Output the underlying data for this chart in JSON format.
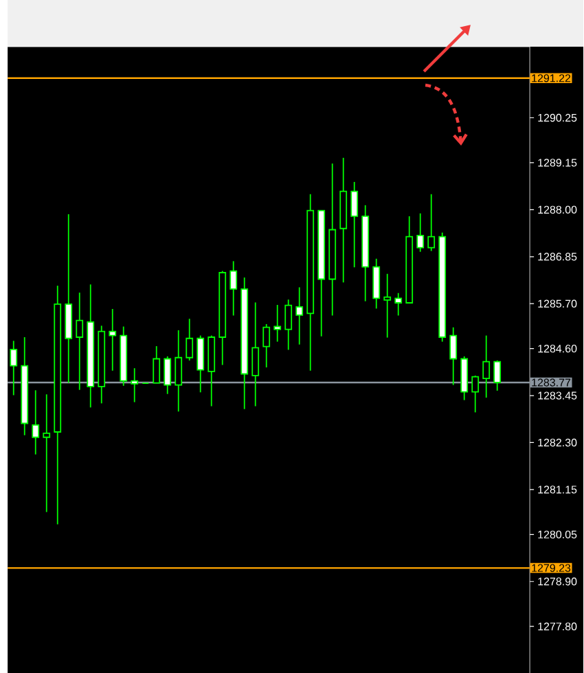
{
  "chart_data": {
    "type": "candlestick",
    "color": "#00ff00",
    "categories": [
      null,
      null,
      null,
      null,
      null,
      null,
      null,
      null,
      null,
      null,
      null,
      null,
      null,
      null,
      null,
      null,
      null,
      null,
      null,
      null,
      null,
      null,
      null,
      null,
      null,
      null,
      null,
      null,
      null,
      null,
      null,
      null,
      null,
      null,
      null,
      null,
      null,
      null,
      null,
      null,
      null,
      null,
      null,
      null,
      null
    ],
    "ohlc": [
      [
        1284.58,
        1284.79,
        1283.46,
        1284.18
      ],
      [
        1284.18,
        1284.88,
        1282.48,
        1282.77
      ],
      [
        1282.73,
        1283.58,
        1282.01,
        1282.43
      ],
      [
        1282.43,
        1283.48,
        1280.6,
        1282.53
      ],
      [
        1282.56,
        1286.14,
        1280.3,
        1285.69
      ],
      [
        1285.69,
        1287.89,
        1283.76,
        1284.85
      ],
      [
        1284.88,
        1285.97,
        1283.59,
        1285.29
      ],
      [
        1285.25,
        1286.17,
        1283.16,
        1283.67
      ],
      [
        1283.67,
        1285.16,
        1283.26,
        1285.02
      ],
      [
        1285.02,
        1285.57,
        1284.06,
        1284.92
      ],
      [
        1284.92,
        1285.14,
        1283.69,
        1283.81
      ],
      [
        1283.81,
        1284.12,
        1283.29,
        1283.74
      ],
      [
        1283.75,
        1283.75,
        1283.75,
        1283.75
      ],
      [
        1283.76,
        1284.66,
        1283.76,
        1284.35
      ],
      [
        1284.35,
        1284.41,
        1283.49,
        1283.71
      ],
      [
        1283.71,
        1285.05,
        1283.06,
        1284.38
      ],
      [
        1284.38,
        1285.33,
        1284.31,
        1284.85
      ],
      [
        1284.85,
        1284.92,
        1283.53,
        1284.08
      ],
      [
        1284.04,
        1284.92,
        1283.19,
        1284.88
      ],
      [
        1284.88,
        1286.5,
        1284.2,
        1286.46
      ],
      [
        1286.5,
        1286.74,
        1285.41,
        1286.06
      ],
      [
        1286.06,
        1286.34,
        1283.12,
        1283.98
      ],
      [
        1283.94,
        1285.73,
        1283.19,
        1284.62
      ],
      [
        1284.65,
        1285.2,
        1284.14,
        1285.12
      ],
      [
        1285.14,
        1285.67,
        1284.77,
        1285.07
      ],
      [
        1285.07,
        1285.8,
        1284.57,
        1285.66
      ],
      [
        1285.62,
        1286.1,
        1284.7,
        1285.42
      ],
      [
        1285.46,
        1288.38,
        1284.06,
        1287.98
      ],
      [
        1287.98,
        1287.98,
        1284.9,
        1286.3
      ],
      [
        1286.3,
        1289.13,
        1285.41,
        1287.51
      ],
      [
        1287.54,
        1289.27,
        1286.22,
        1288.45
      ],
      [
        1288.45,
        1288.68,
        1286.59,
        1287.84
      ],
      [
        1287.84,
        1288.11,
        1285.76,
        1286.6
      ],
      [
        1286.6,
        1286.8,
        1285.58,
        1285.83
      ],
      [
        1285.79,
        1286.43,
        1284.87,
        1285.86
      ],
      [
        1285.83,
        1285.96,
        1285.41,
        1285.72
      ],
      [
        1285.72,
        1287.84,
        1285.72,
        1287.34
      ],
      [
        1287.37,
        1287.91,
        1286.97,
        1287.07
      ],
      [
        1287.07,
        1288.38,
        1286.99,
        1287.34
      ],
      [
        1287.34,
        1287.44,
        1284.77,
        1284.88
      ],
      [
        1284.92,
        1285.12,
        1283.71,
        1284.35
      ],
      [
        1284.35,
        1284.41,
        1283.34,
        1283.54
      ],
      [
        1283.54,
        1283.94,
        1283.04,
        1283.91
      ],
      [
        1283.87,
        1284.92,
        1283.4,
        1284.28
      ],
      [
        1284.28,
        1284.31,
        1283.57,
        1283.77
      ]
    ],
    "ylim": [
      1276.66,
      1291.99
    ],
    "yticks": [
      1290.25,
      1289.15,
      {
        "value": 1288.0,
        "label": "1288.00"
      },
      1286.85,
      {
        "value": 1285.7,
        "label": "1285.70"
      },
      {
        "value": 1284.6,
        "label": "1284.60"
      },
      1283.45,
      {
        "value": 1282.3,
        "label": "1282.30"
      },
      1281.15,
      1280.05,
      {
        "value": 1278.9,
        "label": "1278.90"
      },
      {
        "value": 1277.8,
        "label": "1277.80"
      }
    ],
    "tick_labels": "y",
    "ref_lines": [
      {
        "axis": "y",
        "value": 1291.22,
        "label": "1291.22",
        "color": "#ffa500"
      },
      {
        "axis": "y",
        "value": 1279.23,
        "label": "1279.23",
        "color": "#ffa500"
      },
      {
        "axis": "y",
        "value": 1283.77,
        "label": "1283.77",
        "color": "#8c96a0"
      }
    ]
  }
}
